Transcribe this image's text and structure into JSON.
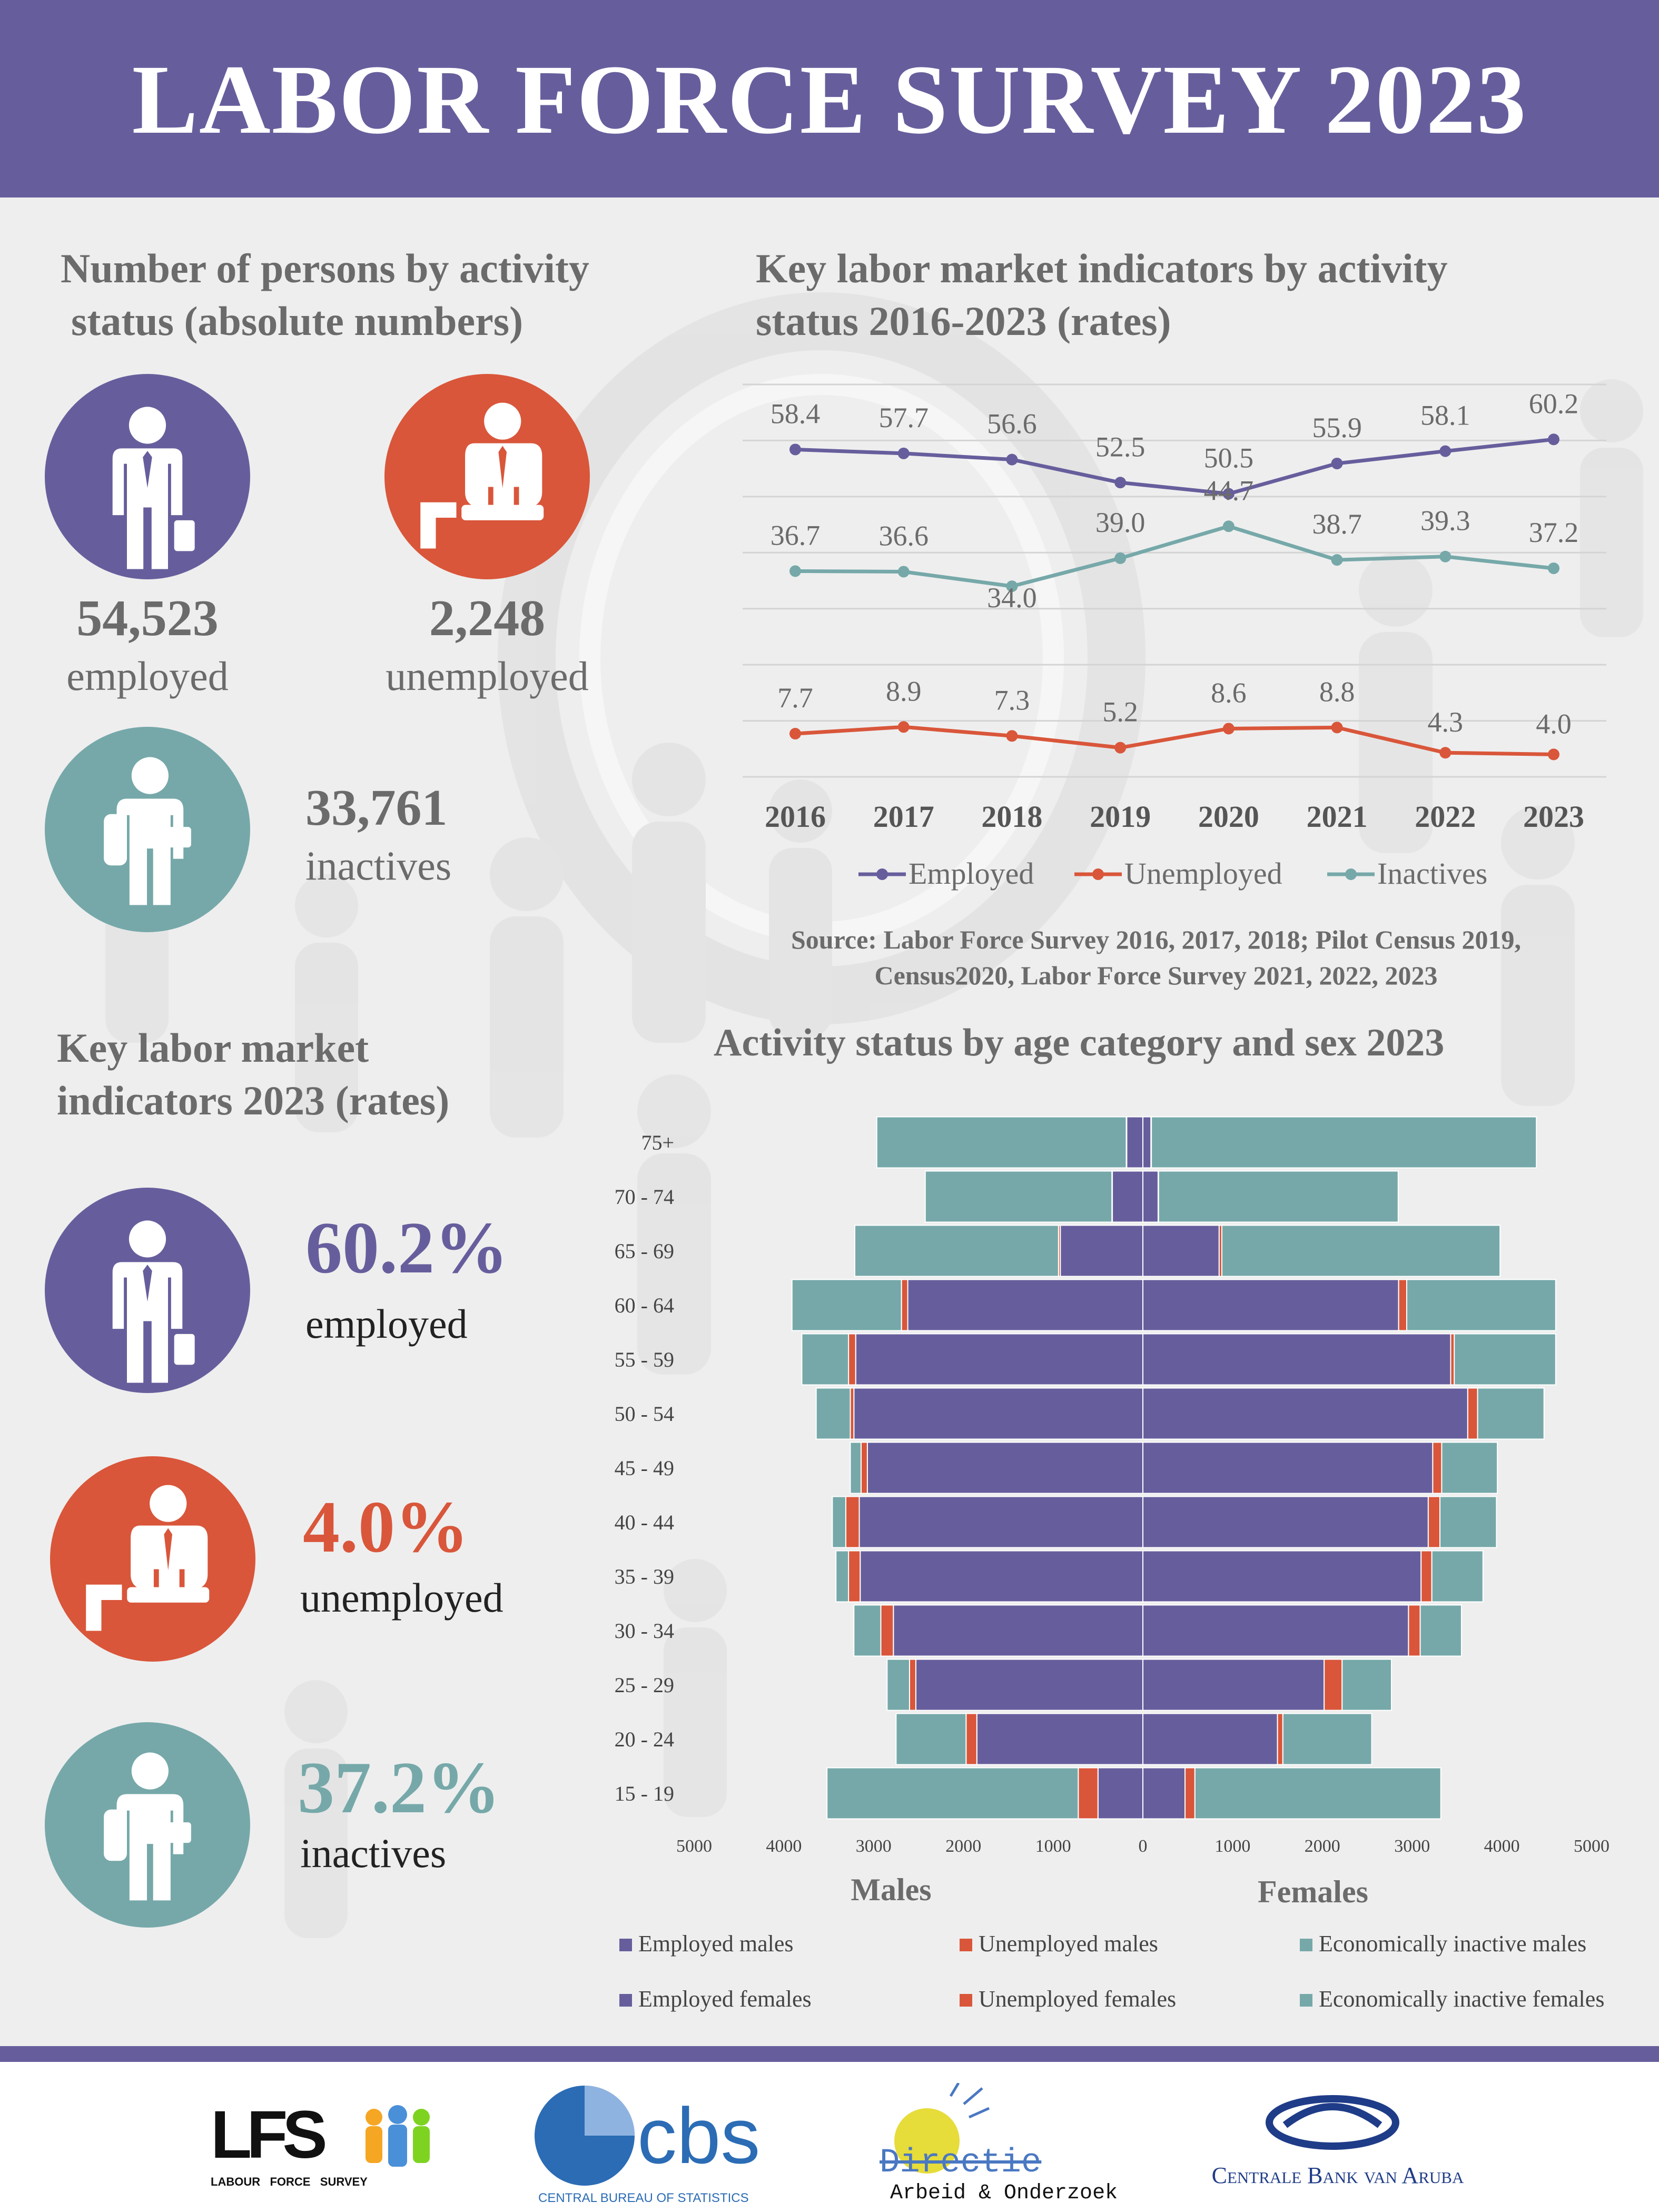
{
  "header": {
    "title": "LABOR FORCE SURVEY 2023"
  },
  "colors": {
    "purple": "#665e9c",
    "red": "#d9563a",
    "teal": "#76a8a9",
    "gray": "#6b6b6b"
  },
  "persons": {
    "title_line1": "Number of persons by activity",
    "title_line2": "status (absolute numbers)",
    "employed": {
      "number": "54,523",
      "label": "employed",
      "icon": "businessman-icon"
    },
    "unemployed": {
      "number": "2,248",
      "label": "unemployed",
      "icon": "distressed-person-icon"
    },
    "inactives": {
      "number": "33,761",
      "label": "inactives",
      "icon": "student-backpack-icon"
    }
  },
  "rates2023": {
    "title_line1": "Key labor market",
    "title_line2": "indicators 2023 (rates)",
    "employed": {
      "value": "60.2%",
      "label": "employed"
    },
    "unemployed": {
      "value": "4.0%",
      "label": "unemployed"
    },
    "inactives": {
      "value": "37.2%",
      "label": "inactives"
    }
  },
  "trend": {
    "title_line1": "Key labor market indicators by activity",
    "title_line2": "status 2016-2023 (rates)",
    "source_line1": "Source: Labor Force Survey 2016, 2017, 2018; Pilot Census 2019,",
    "source_line2": "Census2020, Labor Force Survey 2021, 2022, 2023"
  },
  "pyramid": {
    "title": "Activity status by age category and sex 2023",
    "males_label": "Males",
    "females_label": "Females"
  },
  "footer": {
    "lfs_text": "LFS",
    "lfs_sub": "LABOUR   FORCE   SURVEY",
    "cbs_text": "cbs",
    "cbs_sub": "CENTRAL BUREAU OF STATISTICS",
    "dao_line1": "Directie",
    "dao_line2": "Arbeid & Onderzoek",
    "cbva_text": "Centrale Bank van Aruba"
  },
  "chart_data": [
    {
      "type": "line",
      "title": "Key labor market indicators by activity status 2016-2023 (rates)",
      "x": [
        "2016",
        "2017",
        "2018",
        "2019",
        "2020",
        "2021",
        "2022",
        "2023"
      ],
      "series": [
        {
          "name": "Employed",
          "color": "#665e9c",
          "values": [
            58.4,
            57.7,
            56.6,
            52.5,
            50.5,
            55.9,
            58.1,
            60.2
          ]
        },
        {
          "name": "Unemployed",
          "color": "#d9563a",
          "values": [
            7.7,
            8.9,
            7.3,
            5.2,
            8.6,
            8.8,
            4.3,
            4.0
          ]
        },
        {
          "name": "Inactives",
          "color": "#76a8a9",
          "values": [
            36.7,
            36.6,
            34.0,
            39.0,
            44.7,
            38.7,
            39.3,
            37.2
          ]
        }
      ],
      "labels": {
        "Employed": [
          "58.4",
          "57.7",
          "56.6",
          "52.5",
          "50.5",
          "55.9",
          "58.1",
          "60.2"
        ],
        "Unemployed": [
          "7.7",
          "8.9",
          "7.3",
          "5.2",
          "8.6",
          "8.8",
          "4.3",
          "4.0"
        ],
        "Inactives": [
          "36.7",
          "36.6",
          "34.0",
          "39.0",
          "44.7",
          "38.7",
          "39.3",
          "37.2"
        ]
      },
      "ylim": [
        0,
        70
      ],
      "grid": true,
      "legend": "bottom"
    },
    {
      "type": "bar",
      "orientation": "horizontal-stacked-pyramid",
      "title": "Activity status by age category and sex 2023",
      "categories": [
        "15 - 19",
        "20 - 24",
        "25 - 29",
        "30 - 34",
        "35 - 39",
        "40 - 44",
        "45 - 49",
        "50 - 54",
        "55 - 59",
        "60 - 64",
        "65 - 69",
        "70 - 74",
        "75+"
      ],
      "series": [
        {
          "name": "Employed males",
          "color": "#665e9c",
          "side": "left",
          "values": [
            500,
            1850,
            2530,
            2780,
            3150,
            3160,
            3070,
            3220,
            3200,
            2620,
            920,
            340,
            180
          ]
        },
        {
          "name": "Unemployed males",
          "color": "#d9563a",
          "side": "left",
          "values": [
            220,
            120,
            70,
            140,
            130,
            150,
            70,
            40,
            80,
            70,
            20,
            5,
            5
          ]
        },
        {
          "name": "Economically inactive males",
          "color": "#76a8a9",
          "side": "left",
          "values": [
            2800,
            780,
            250,
            300,
            140,
            150,
            120,
            380,
            520,
            1220,
            2270,
            2080,
            2780
          ]
        },
        {
          "name": "Employed females",
          "color": "#665e9c",
          "side": "right",
          "values": [
            470,
            1500,
            2020,
            2960,
            3100,
            3180,
            3230,
            3620,
            3430,
            2850,
            850,
            170,
            90
          ]
        },
        {
          "name": "Unemployed females",
          "color": "#d9563a",
          "side": "right",
          "values": [
            110,
            60,
            200,
            130,
            120,
            130,
            100,
            110,
            40,
            90,
            30,
            5,
            5
          ]
        },
        {
          "name": "Economically inactive females",
          "color": "#76a8a9",
          "side": "right",
          "values": [
            2740,
            990,
            550,
            460,
            570,
            630,
            620,
            740,
            1130,
            1660,
            3100,
            2670,
            4290
          ]
        }
      ],
      "x_ticks": [
        "5000",
        "4000",
        "3000",
        "2000",
        "1000",
        "0",
        "1000",
        "2000",
        "3000",
        "4000",
        "5000"
      ],
      "xlim": [
        -5000,
        5000
      ],
      "xlabel_left": "Males",
      "xlabel_right": "Females",
      "legend": "bottom"
    }
  ]
}
